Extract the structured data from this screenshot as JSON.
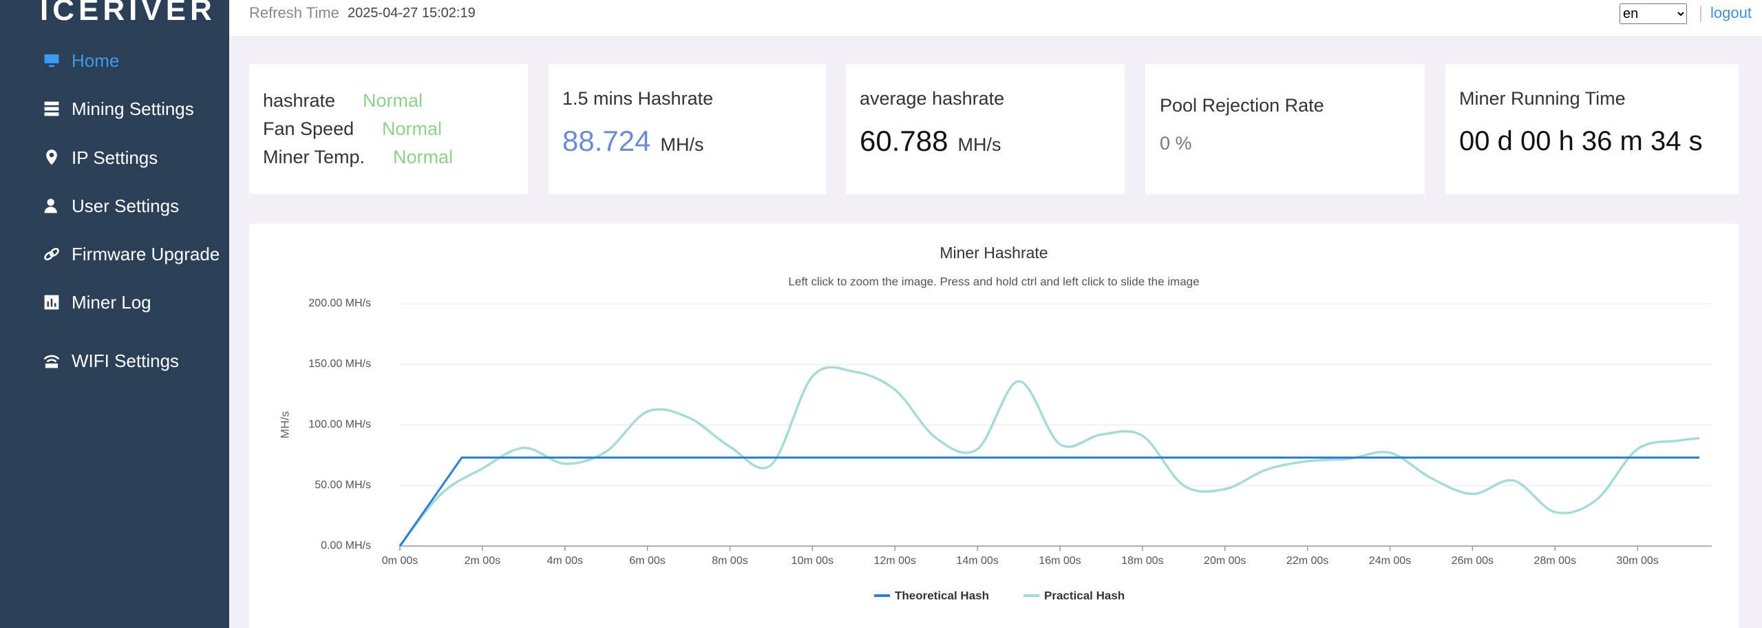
{
  "sidebar": {
    "logo": "ICERIVER",
    "nav": [
      "Home",
      "Mining Settings",
      "IP Settings",
      "User Settings",
      "Firmware Upgrade",
      "Miner Log",
      "WIFI Settings"
    ]
  },
  "header": {
    "refresh_label": "Refresh Time",
    "refresh_time": "2025-04-27 15:02:19",
    "language": "en",
    "logout": "logout"
  },
  "cards": {
    "status": [
      {
        "label": "hashrate",
        "value": "Normal"
      },
      {
        "label": "Fan Speed",
        "value": "Normal"
      },
      {
        "label": "Miner Temp.",
        "value": "Normal"
      }
    ],
    "recent_hashrate": {
      "title": "1.5 mins Hashrate",
      "value": "88.724",
      "unit": "MH/s"
    },
    "average_hashrate": {
      "title": "average hashrate",
      "value": "60.788",
      "unit": "MH/s"
    },
    "pool_rejection": {
      "title": "Pool Rejection Rate",
      "value": "0 %"
    },
    "running_time": {
      "title": "Miner Running Time",
      "value": "00 d 00 h 36 m 34 s"
    }
  },
  "chart_data": {
    "type": "line",
    "title": "Miner Hashrate",
    "subtitle": "Left click to zoom the image. Press and hold ctrl and left click to slide the image",
    "ylabel": "MH/s",
    "xlim": [
      0,
      31.8
    ],
    "ylim": [
      0,
      200
    ],
    "xticks": [
      {
        "value": 0,
        "label": "0m 00s"
      },
      {
        "value": 2,
        "label": "2m 00s"
      },
      {
        "value": 4,
        "label": "4m 00s"
      },
      {
        "value": 6,
        "label": "6m 00s"
      },
      {
        "value": 8,
        "label": "8m 00s"
      },
      {
        "value": 10,
        "label": "10m 00s"
      },
      {
        "value": 12,
        "label": "12m 00s"
      },
      {
        "value": 14,
        "label": "14m 00s"
      },
      {
        "value": 16,
        "label": "16m 00s"
      },
      {
        "value": 18,
        "label": "18m 00s"
      },
      {
        "value": 20,
        "label": "20m 00s"
      },
      {
        "value": 22,
        "label": "22m 00s"
      },
      {
        "value": 24,
        "label": "24m 00s"
      },
      {
        "value": 26,
        "label": "26m 00s"
      },
      {
        "value": 28,
        "label": "28m 00s"
      },
      {
        "value": 30,
        "label": "30m 00s"
      }
    ],
    "yticks": [
      {
        "value": 0,
        "label": "0.00 MH/s"
      },
      {
        "value": 50,
        "label": "50.00 MH/s"
      },
      {
        "value": 100,
        "label": "100.00 MH/s"
      },
      {
        "value": 150,
        "label": "150.00 MH/s"
      },
      {
        "value": 200,
        "label": "200.00 MH/s"
      }
    ],
    "grid": true,
    "legend": "bottom",
    "series": [
      {
        "name": "Theoretical Hash",
        "color": "#2f80d0",
        "smooth": false,
        "x": [
          0,
          1.5,
          31.5
        ],
        "values": [
          0,
          73,
          73
        ]
      },
      {
        "name": "Practical Hash",
        "color": "#a6dbd8",
        "smooth": true,
        "x": [
          0,
          1,
          2,
          3,
          4,
          5,
          6,
          7,
          8,
          9,
          10,
          11,
          12,
          13,
          14,
          15,
          16,
          17,
          18,
          19,
          20,
          21,
          22,
          23,
          24,
          25,
          26,
          27,
          28,
          29,
          30,
          31,
          31.5
        ],
        "values": [
          0,
          43,
          64,
          81,
          68,
          78,
          111,
          106,
          82,
          67,
          140,
          144,
          129,
          89,
          80,
          136,
          84,
          92,
          91,
          50,
          47,
          63,
          70,
          72,
          77,
          56,
          43,
          54,
          28,
          38,
          80,
          87,
          89
        ]
      }
    ]
  }
}
